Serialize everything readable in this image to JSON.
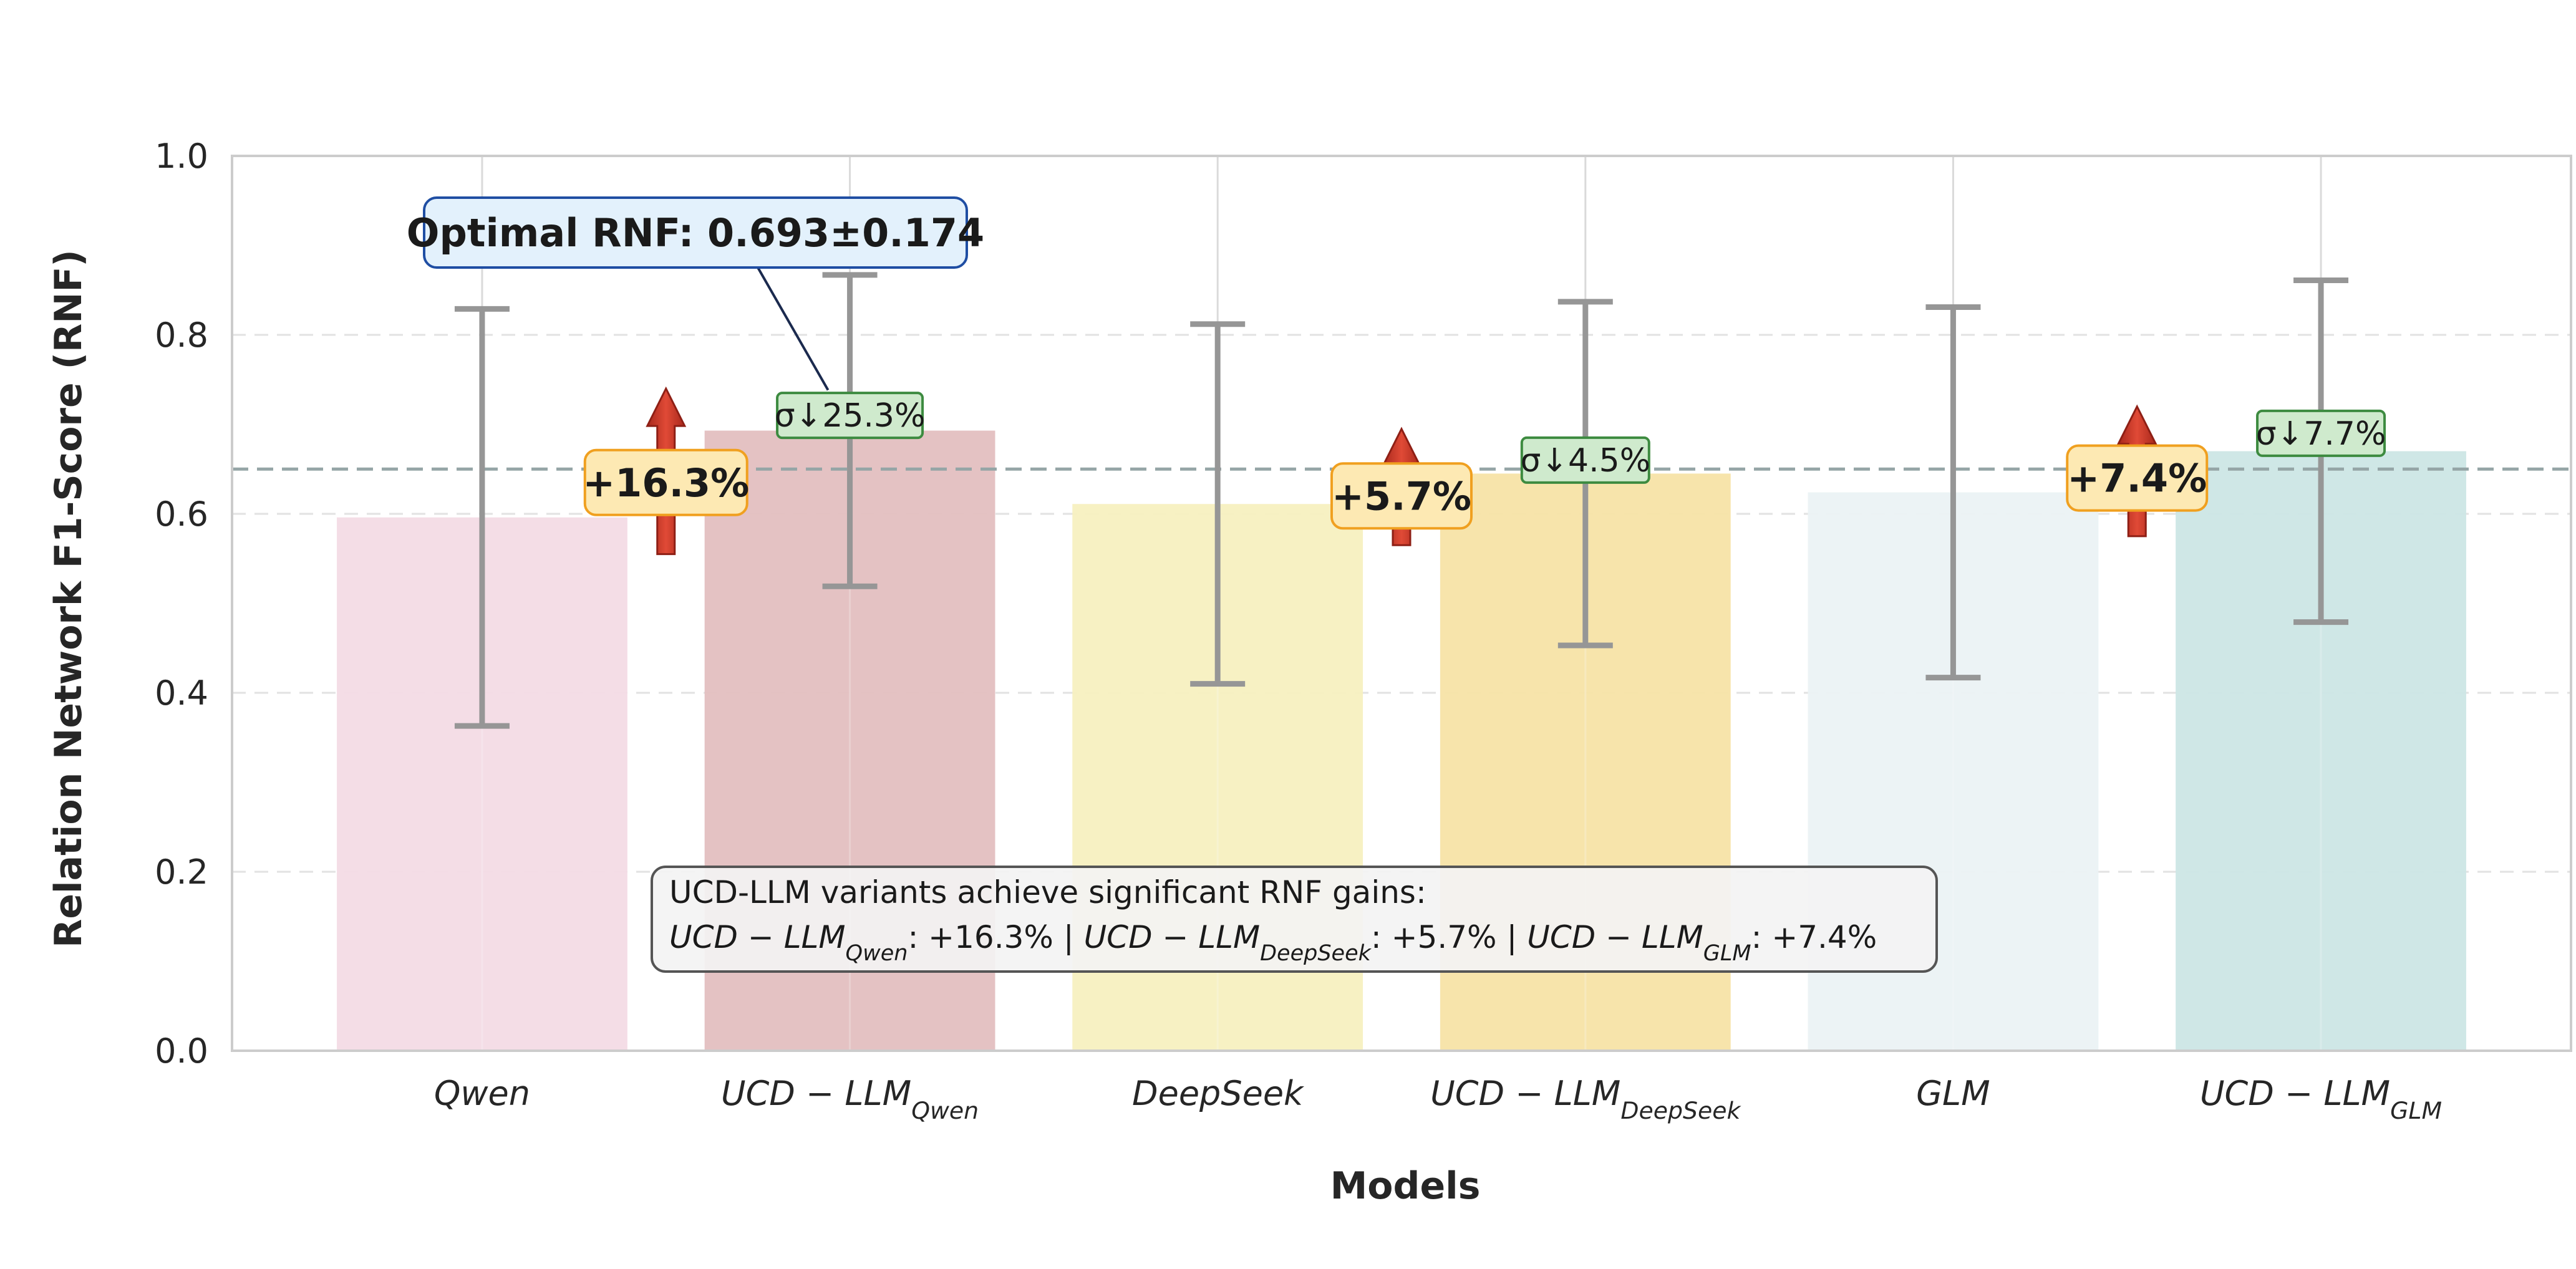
{
  "chart_data": {
    "type": "bar",
    "xlabel": "Models",
    "ylabel": "Relation Network F1-Score (RNF)",
    "ylim": [
      0.0,
      1.0
    ],
    "yticks": [
      "0.0",
      "0.2",
      "0.4",
      "0.6",
      "0.8",
      "1.0"
    ],
    "grid": true,
    "reference_line": 0.65,
    "categories": [
      {
        "base": "Qwen",
        "sub": ""
      },
      {
        "base": "UCD − LLM",
        "sub": "Qwen"
      },
      {
        "base": "DeepSeek",
        "sub": ""
      },
      {
        "base": "UCD − LLM",
        "sub": "DeepSeek"
      },
      {
        "base": "GLM",
        "sub": ""
      },
      {
        "base": "UCD − LLM",
        "sub": "GLM"
      }
    ],
    "values": [
      0.596,
      0.693,
      0.611,
      0.645,
      0.624,
      0.67
    ],
    "errors": [
      0.233,
      0.174,
      0.201,
      0.192,
      0.207,
      0.191
    ],
    "colors": [
      "#f3dbe5",
      "#e3bfc0",
      "#f7f0c0",
      "#f7e3a6",
      "#ebf2f4",
      "#cce6e5"
    ],
    "gains": [
      {
        "label": "+16.3%",
        "pair": [
          0,
          1
        ],
        "arrow_from": 0.555,
        "arrow_to": 0.74,
        "box_at": 0.635
      },
      {
        "label": "+5.7%",
        "pair": [
          2,
          3
        ],
        "arrow_from": 0.565,
        "arrow_to": 0.695,
        "box_at": 0.62
      },
      {
        "label": "+7.4%",
        "pair": [
          4,
          5
        ],
        "arrow_from": 0.575,
        "arrow_to": 0.72,
        "box_at": 0.64
      }
    ],
    "sigma_badges": [
      {
        "label": "σ↓25.3%",
        "bar": 1,
        "at": 0.71
      },
      {
        "label": "σ↓4.5%",
        "bar": 3,
        "at": 0.66
      },
      {
        "label": "σ↓7.7%",
        "bar": 5,
        "at": 0.69
      }
    ],
    "optimal_annotation": {
      "label": "Optimal RNF: 0.693±0.174",
      "bar": 1
    },
    "summary_box": {
      "title": "UCD-LLM variants achieve significant RNF gains:",
      "items": [
        {
          "base": "UCD − LLM",
          "sub": "Qwen",
          "value": ": +16.3%"
        },
        {
          "base": "UCD − LLM",
          "sub": "DeepSeek",
          "value": ": +5.7%"
        },
        {
          "base": "UCD − LLM",
          "sub": "GLM",
          "value": ": +7.4%"
        }
      ],
      "separator": "|"
    }
  }
}
